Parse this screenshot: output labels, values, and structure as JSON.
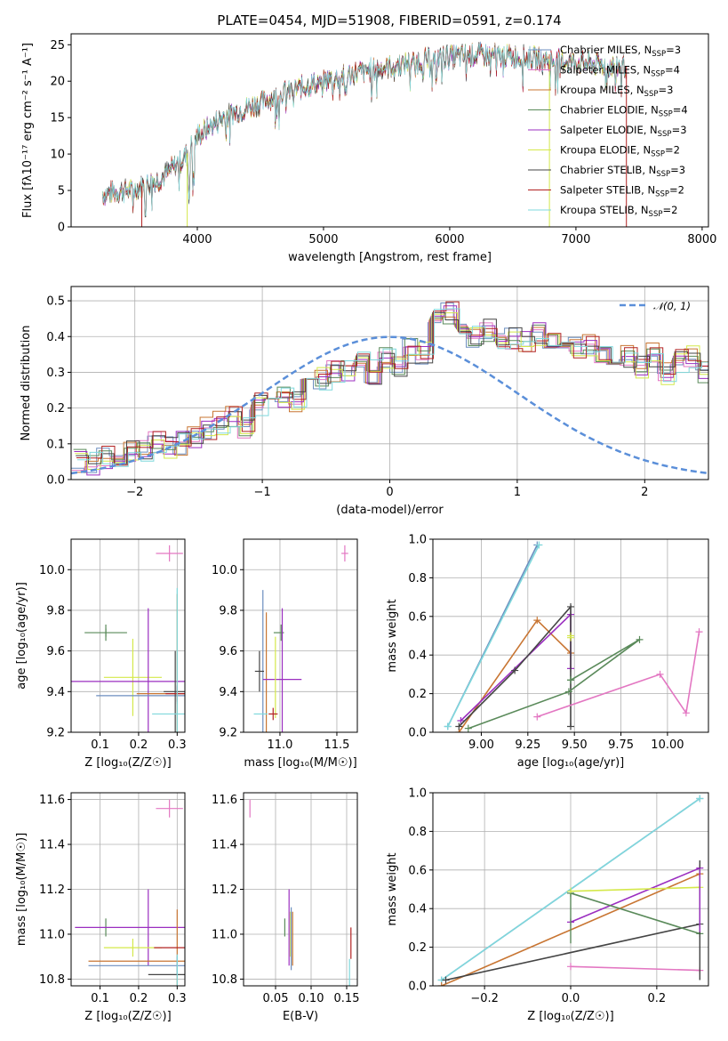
{
  "colors": {
    "Chabrier MILES": "#6c8ebf",
    "Salpeter MILES": "#e377c2",
    "Kroupa MILES": "#c87532",
    "Chabrier ELODIE": "#5a8a5a",
    "Salpeter ELODIE": "#9b2fc0",
    "Kroupa ELODIE": "#d4e84a",
    "Chabrier STELIB": "#444444",
    "Salpeter STELIB": "#b22222",
    "Kroupa STELIB": "#7fd8dc",
    "normal_curve": "#5b8fd9"
  },
  "chart_data": [
    {
      "id": "spectrum",
      "type": "line",
      "title": "PLATE=0454, MJD=51908, FIBERID=0591, z=0.174",
      "xlabel": "wavelength [Angstrom, rest frame]",
      "ylabel": "Flux [fλ10⁻¹⁷ erg cm⁻² s⁻¹ A⁻¹]",
      "xlim": [
        3000,
        8050
      ],
      "ylim": [
        0,
        26.5
      ],
      "xticks": [
        "4000",
        "5000",
        "6000",
        "7000",
        "8000"
      ],
      "yticks": [
        "0",
        "5",
        "10",
        "15",
        "20",
        "25"
      ],
      "grid": false,
      "legend_position": "top-right",
      "legend": [
        {
          "model": "Chabrier MILES",
          "text": "Chabrier MILES, N",
          "sub": "SSP",
          "n": "=3"
        },
        {
          "model": "Salpeter MILES",
          "text": "Salpeter MILES, N",
          "sub": "SSP",
          "n": "=4"
        },
        {
          "model": "Kroupa MILES",
          "text": "Kroupa MILES, N",
          "sub": "SSP",
          "n": "=3"
        },
        {
          "model": "Chabrier ELODIE",
          "text": "Chabrier ELODIE, N",
          "sub": "SSP",
          "n": "=4"
        },
        {
          "model": "Salpeter ELODIE",
          "text": "Salpeter ELODIE, N",
          "sub": "SSP",
          "n": "=3"
        },
        {
          "model": "Kroupa ELODIE",
          "text": "Kroupa ELODIE, N",
          "sub": "SSP",
          "n": "=2"
        },
        {
          "model": "Chabrier STELIB",
          "text": "Chabrier STELIB, N",
          "sub": "SSP",
          "n": "=3"
        },
        {
          "model": "Salpeter STELIB",
          "text": "Salpeter STELIB, N",
          "sub": "SSP",
          "n": "=2"
        },
        {
          "model": "Kroupa STELIB",
          "text": "Kroupa STELIB, N",
          "sub": "SSP",
          "n": "=2"
        }
      ],
      "continuum": {
        "x": [
          3250,
          3500,
          3700,
          3900,
          4000,
          4200,
          4500,
          4700,
          5000,
          5300,
          5600,
          5900,
          6200,
          6500,
          6800,
          7100,
          7300,
          7400
        ],
        "y": [
          4.5,
          5.2,
          6.5,
          9.5,
          12.5,
          15,
          17,
          18.5,
          20,
          21.3,
          22.3,
          23.2,
          23.6,
          23.4,
          22.9,
          22.4,
          22.1,
          22.0
        ]
      },
      "observed_range": [
        3250,
        7400
      ]
    },
    {
      "id": "residual_hist",
      "type": "bar",
      "xlabel": "(data-model)/error",
      "ylabel": "Normed distribution",
      "xlim": [
        -2.5,
        2.5
      ],
      "ylim": [
        0,
        0.54
      ],
      "xticks": [
        "−2",
        "−1",
        "0",
        "1",
        "2"
      ],
      "yticks": [
        "0.0",
        "0.1",
        "0.2",
        "0.3",
        "0.4",
        "0.5"
      ],
      "grid": true,
      "legend_position": "top-right",
      "legend": [
        {
          "text": "𝒩(0, 1)",
          "style": "dashed"
        }
      ],
      "bin_width": 0.1,
      "bins_start": -2.5,
      "base_values": [
        0.05,
        0.045,
        0.06,
        0.07,
        0.075,
        0.08,
        0.1,
        0.09,
        0.1,
        0.12,
        0.14,
        0.16,
        0.17,
        0.15,
        0.21,
        0.2,
        0.23,
        0.22,
        0.25,
        0.28,
        0.3,
        0.31,
        0.33,
        0.3,
        0.34,
        0.32,
        0.36,
        0.35,
        0.45,
        0.47,
        0.43,
        0.4,
        0.42,
        0.38,
        0.4,
        0.39,
        0.41,
        0.4,
        0.36,
        0.37,
        0.38,
        0.35,
        0.33,
        0.34,
        0.31,
        0.35,
        0.3,
        0.33,
        0.34,
        0.3,
        0.25,
        0.24,
        0.2,
        0.21,
        0.19,
        0.18,
        0.16,
        0.15,
        0.14,
        0.12,
        0.11,
        0.09,
        0.07,
        0.08,
        0.07,
        0.05,
        0.05,
        0.04,
        0.05,
        0.04,
        0.04,
        0.03,
        0.03,
        0.03,
        0.02,
        0.02,
        0.03,
        0.02,
        0.01,
        0.01
      ]
    },
    {
      "id": "age_vs_Z",
      "type": "scatter",
      "xlabel": "Z [log₁₀(Z/Z☉)]",
      "ylabel": "age  [log₁₀(age/yr)]",
      "xlim": [
        0.025,
        0.32
      ],
      "ylim": [
        9.2,
        10.15
      ],
      "xticks": [
        "0.1",
        "0.2",
        "0.3"
      ],
      "yticks": [
        "9.2",
        "9.4",
        "9.6",
        "9.8",
        "10.0"
      ],
      "grid": true,
      "points": [
        {
          "model": "Salpeter MILES",
          "x": 0.28,
          "y": 10.08,
          "xerr": 0.035,
          "yerr": 0.04
        },
        {
          "model": "Chabrier ELODIE",
          "x": 0.115,
          "y": 9.69,
          "xerr": 0.055,
          "yerr": 0.04
        },
        {
          "model": "Chabrier ELODIE",
          "x": 0.115,
          "y": 9.69,
          "xerr": 0.0,
          "yerr": 0.02
        },
        {
          "model": "Kroupa ELODIE",
          "x": 0.185,
          "y": 9.47,
          "xerr": 0.075,
          "yerr": 0.19
        },
        {
          "model": "Salpeter ELODIE",
          "x": 0.225,
          "y": 9.45,
          "xerr": 0.2,
          "yerr": 0.36
        },
        {
          "model": "Chabrier MILES",
          "x": 0.3,
          "y": 9.38,
          "xerr": 0.21,
          "yerr": 0.04
        },
        {
          "model": "Kroupa MILES",
          "x": 0.3,
          "y": 9.39,
          "xerr": 0.105,
          "yerr": 0.49
        },
        {
          "model": "Chabrier STELIB",
          "x": 0.295,
          "y": 9.4,
          "xerr": 0.03,
          "yerr": 0.2
        },
        {
          "model": "Salpeter STELIB",
          "x": 0.3,
          "y": 9.39,
          "xerr": 0.03,
          "yerr": 0.04
        },
        {
          "model": "Kroupa STELIB",
          "x": 0.3,
          "y": 9.29,
          "xerr": 0.065,
          "yerr": 0.62
        }
      ]
    },
    {
      "id": "age_vs_mass",
      "type": "scatter",
      "xlabel": "mass [log₁₀(M/M☉)]",
      "xlim": [
        10.68,
        11.68
      ],
      "ylim": [
        9.2,
        10.15
      ],
      "xticks": [
        "11.0",
        "11.5"
      ],
      "yticks": [
        "9.2",
        "9.4",
        "9.6",
        "9.8",
        "10.0"
      ],
      "grid": true,
      "points": [
        {
          "model": "Salpeter MILES",
          "x": 11.57,
          "y": 10.08,
          "xerr": 0.03,
          "yerr": 0.04
        },
        {
          "model": "Chabrier MILES",
          "x": 10.85,
          "y": 9.4,
          "xerr": 0.0,
          "yerr": 0.5
        },
        {
          "model": "Kroupa MILES",
          "x": 10.88,
          "y": 9.39,
          "xerr": 0.0,
          "yerr": 0.4
        },
        {
          "model": "Chabrier ELODIE",
          "x": 10.99,
          "y": 9.69,
          "xerr": 0.045,
          "yerr": 0.0
        },
        {
          "model": "Chabrier ELODIE",
          "x": 11.01,
          "y": 9.69,
          "xerr": 0.0,
          "yerr": 0.04
        },
        {
          "model": "Salpeter ELODIE",
          "x": 11.02,
          "y": 9.46,
          "xerr": 0.17,
          "yerr": 0.35
        },
        {
          "model": "Kroupa ELODIE",
          "x": 10.96,
          "y": 9.47,
          "xerr": 0.0,
          "yerr": 0.2
        },
        {
          "model": "Chabrier STELIB",
          "x": 10.82,
          "y": 9.5,
          "xerr": 0.04,
          "yerr": 0.1
        },
        {
          "model": "Salpeter STELIB",
          "x": 10.94,
          "y": 9.29,
          "xerr": 0.04,
          "yerr": 0.03
        },
        {
          "model": "Kroupa STELIB",
          "x": 10.83,
          "y": 9.29,
          "xerr": 0.06,
          "yerr": 0.0
        }
      ]
    },
    {
      "id": "weight_vs_age",
      "type": "line",
      "xlabel": "age  [log₁₀(age/yr)]",
      "ylabel": "mass weight",
      "xlim": [
        8.74,
        10.22
      ],
      "ylim": [
        0,
        1
      ],
      "xticks": [
        "9.00",
        "9.25",
        "9.50",
        "9.75",
        "10.00"
      ],
      "yticks": [
        "0.0",
        "0.2",
        "0.4",
        "0.6",
        "0.8",
        "1.0"
      ],
      "grid": true,
      "series": [
        {
          "model": "Chabrier MILES",
          "x": [
            8.82,
            9.3
          ],
          "y": [
            0.03,
            0.97
          ]
        },
        {
          "model": "Kroupa STELIB",
          "x": [
            8.82,
            9.31
          ],
          "y": [
            0.03,
            0.97
          ]
        },
        {
          "model": "Kroupa MILES",
          "x": [
            8.88,
            9.3,
            9.48
          ],
          "y": [
            0.0,
            0.58,
            0.41
          ]
        },
        {
          "model": "Salpeter ELODIE",
          "x": [
            8.89,
            9.48,
            9.48
          ],
          "y": [
            0.06,
            0.61,
            0.33
          ]
        },
        {
          "model": "Chabrier STELIB",
          "x": [
            8.88,
            9.18,
            9.48,
            9.48
          ],
          "y": [
            0.03,
            0.32,
            0.65,
            0.03
          ]
        },
        {
          "model": "Chabrier ELODIE",
          "x": [
            8.93,
            9.47,
            9.85,
            9.48,
            9.48
          ],
          "y": [
            0.02,
            0.21,
            0.48,
            0.27,
            0.27
          ]
        },
        {
          "model": "Kroupa ELODIE",
          "x": [
            9.48,
            9.48
          ],
          "y": [
            0.5,
            0.49
          ]
        },
        {
          "model": "Salpeter MILES",
          "x": [
            9.3,
            9.96,
            10.1,
            10.17
          ],
          "y": [
            0.08,
            0.3,
            0.1,
            0.52
          ]
        }
      ]
    },
    {
      "id": "mass_vs_Z",
      "type": "scatter",
      "xlabel": "Z [log₁₀(Z/Z☉)]",
      "ylabel": "mass [log₁₀(M/M☉)]",
      "xlim": [
        0.025,
        0.32
      ],
      "ylim": [
        10.77,
        11.63
      ],
      "xticks": [
        "0.1",
        "0.2",
        "0.3"
      ],
      "yticks": [
        "10.8",
        "11.0",
        "11.2",
        "11.4",
        "11.6"
      ],
      "grid": true,
      "points": [
        {
          "model": "Salpeter MILES",
          "x": 0.28,
          "y": 11.56,
          "xerr": 0.035,
          "yerr": 0.04
        },
        {
          "model": "Chabrier ELODIE",
          "x": 0.115,
          "y": 11.03,
          "xerr": 0.0,
          "yerr": 0.04
        },
        {
          "model": "Salpeter ELODIE",
          "x": 0.225,
          "y": 11.03,
          "xerr": 0.19,
          "yerr": 0.17
        },
        {
          "model": "Kroupa ELODIE",
          "x": 0.185,
          "y": 10.94,
          "xerr": 0.075,
          "yerr": 0.04
        },
        {
          "model": "Kroupa MILES",
          "x": 0.3,
          "y": 10.88,
          "xerr": 0.23,
          "yerr": 0.23
        },
        {
          "model": "Chabrier MILES",
          "x": 0.3,
          "y": 10.86,
          "xerr": 0.23,
          "yerr": 0.04
        },
        {
          "model": "Chabrier STELIB",
          "x": 0.295,
          "y": 10.82,
          "xerr": 0.07,
          "yerr": 0.0
        },
        {
          "model": "Salpeter STELIB",
          "x": 0.3,
          "y": 10.94,
          "xerr": 0.06,
          "yerr": 0.0
        },
        {
          "model": "Kroupa STELIB",
          "x": 0.3,
          "y": 10.83,
          "xerr": 0.0,
          "yerr": 0.08
        }
      ]
    },
    {
      "id": "mass_vs_ebv",
      "type": "scatter",
      "xlabel": "E(B-V)",
      "xlim": [
        0.005,
        0.165
      ],
      "ylim": [
        10.77,
        11.63
      ],
      "xticks": [
        "0.05",
        "0.10",
        "0.15"
      ],
      "yticks": [
        "10.8",
        "11.0",
        "11.2",
        "11.4",
        "11.6"
      ],
      "grid": true,
      "points": [
        {
          "model": "Salpeter MILES",
          "x": 0.014,
          "y": 11.56,
          "xerr": 0.0,
          "yerr": 0.04
        },
        {
          "model": "Chabrier ELODIE",
          "x": 0.063,
          "y": 11.03,
          "xerr": 0.0,
          "yerr": 0.04
        },
        {
          "model": "Salpeter ELODIE",
          "x": 0.069,
          "y": 11.03,
          "xerr": 0.0,
          "yerr": 0.17
        },
        {
          "model": "Kroupa ELODIE",
          "x": 0.071,
          "y": 11.0,
          "xerr": 0.0,
          "yerr": 0.1
        },
        {
          "model": "Chabrier MILES",
          "x": 0.072,
          "y": 10.98,
          "xerr": 0.0,
          "yerr": 0.14
        },
        {
          "model": "Kroupa MILES",
          "x": 0.074,
          "y": 10.98,
          "xerr": 0.0,
          "yerr": 0.12
        },
        {
          "model": "Salpeter STELIB",
          "x": 0.156,
          "y": 10.96,
          "xerr": 0.0,
          "yerr": 0.07
        },
        {
          "model": "Kroupa STELIB",
          "x": 0.154,
          "y": 10.83,
          "xerr": 0.0,
          "yerr": 0.06
        }
      ]
    },
    {
      "id": "weight_vs_Z",
      "type": "line",
      "xlabel": "Z [log₁₀(Z/Z☉)]",
      "ylabel": "mass weight",
      "xlim": [
        -0.32,
        0.32
      ],
      "ylim": [
        0,
        1
      ],
      "xticks": [
        "−0.2",
        "0.0",
        "0.2"
      ],
      "yticks": [
        "0.0",
        "0.2",
        "0.4",
        "0.6",
        "0.8",
        "1.0"
      ],
      "grid": true,
      "series": [
        {
          "model": "Chabrier MILES",
          "x": [
            -0.3,
            0.3
          ],
          "y": [
            0.03,
            0.97
          ]
        },
        {
          "model": "Kroupa STELIB",
          "x": [
            -0.3,
            0.3
          ],
          "y": [
            0.03,
            0.97
          ]
        },
        {
          "model": "Kroupa MILES",
          "x": [
            -0.3,
            0.3
          ],
          "y": [
            0.0,
            0.58
          ]
        },
        {
          "model": "Salpeter ELODIE",
          "x": [
            0.0,
            0.3
          ],
          "y": [
            0.33,
            0.61
          ]
        },
        {
          "model": "Chabrier STELIB",
          "x": [
            -0.29,
            0.3
          ],
          "y": [
            0.03,
            0.32
          ]
        },
        {
          "model": "Chabrier ELODIE",
          "x": [
            0.0,
            0.3
          ],
          "y": [
            0.48,
            0.27
          ]
        },
        {
          "model": "Kroupa ELODIE",
          "x": [
            0.0,
            0.3
          ],
          "y": [
            0.49,
            0.51
          ]
        },
        {
          "model": "Salpeter MILES",
          "x": [
            0.0,
            0.3
          ],
          "y": [
            0.1,
            0.08
          ]
        }
      ],
      "vertical_markers": [
        {
          "model": "Chabrier ELODIE",
          "x": 0.0,
          "y": [
            0.22,
            0.48
          ]
        },
        {
          "model": "Chabrier STELIB",
          "x": 0.3,
          "y": [
            0.03,
            0.65
          ]
        },
        {
          "model": "Salpeter ELODIE",
          "x": 0.3,
          "y": [
            0.28,
            0.61
          ]
        }
      ]
    }
  ]
}
